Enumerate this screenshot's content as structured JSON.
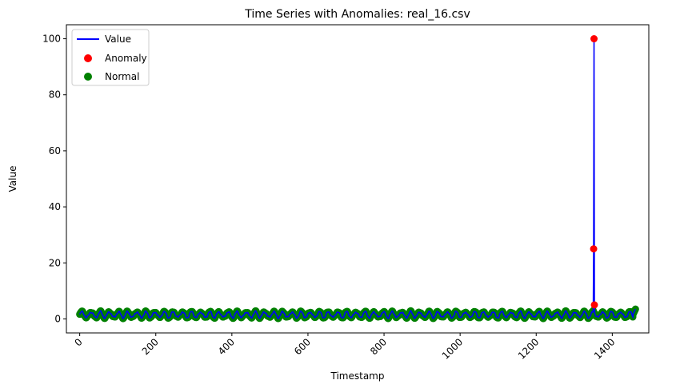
{
  "chart_data": {
    "type": "line",
    "title": "Time Series with Anomalies: real_16.csv",
    "xlabel": "Timestamp",
    "ylabel": "Value",
    "xlim": [
      -35,
      1496
    ],
    "ylim": [
      -5,
      105
    ],
    "x_ticks": [
      0,
      200,
      400,
      600,
      800,
      1000,
      1200,
      1400
    ],
    "y_ticks": [
      0,
      20,
      40,
      60,
      80,
      100
    ],
    "grid": false,
    "legend_position": "upper-left",
    "legend": [
      {
        "label": "Value",
        "kind": "line",
        "color": "#0000ff"
      },
      {
        "label": "Anomaly",
        "kind": "marker",
        "color": "#ff0000"
      },
      {
        "label": "Normal",
        "kind": "marker",
        "color": "#008000"
      }
    ],
    "series": [
      {
        "name": "Value",
        "kind": "line",
        "color": "#0000ff",
        "n_points": 1462,
        "x_range": [
          0,
          1461
        ],
        "baseline_mean": 1.5,
        "oscillation_amplitude": 1.0,
        "oscillation_period": 24,
        "spike_points": [
          {
            "x": 1350,
            "y": 3
          },
          {
            "x": 1351,
            "y": 25
          },
          {
            "x": 1352,
            "y": 100
          },
          {
            "x": 1353,
            "y": 5
          },
          {
            "x": 1354,
            "y": 2
          }
        ],
        "end_value": 3.5
      },
      {
        "name": "Anomaly",
        "kind": "scatter",
        "color": "#ff0000",
        "points": [
          {
            "x": 1351,
            "y": 25
          },
          {
            "x": 1352,
            "y": 100
          },
          {
            "x": 1353,
            "y": 5
          }
        ]
      },
      {
        "name": "Normal",
        "kind": "scatter",
        "color": "#008000",
        "comment_free_note": "",
        "source": "Value series excluding anomaly points"
      }
    ]
  }
}
